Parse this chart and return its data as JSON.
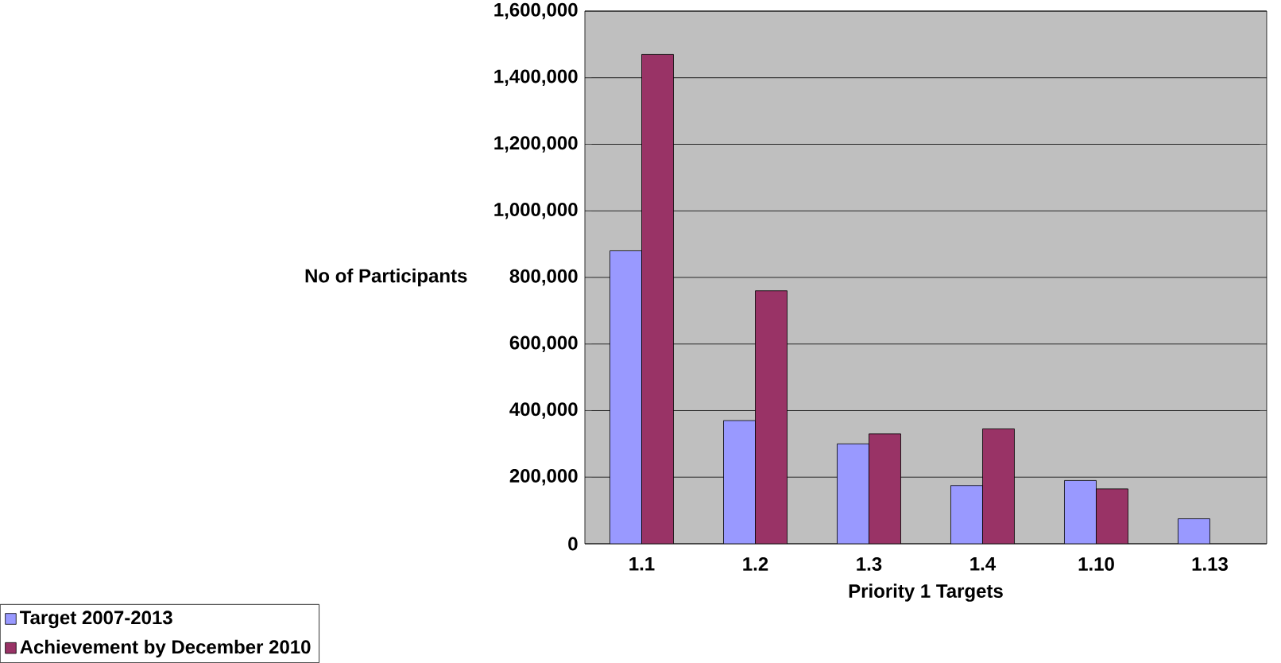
{
  "chart_data": {
    "type": "bar",
    "xlabel": "Priority 1 Targets",
    "ylabel": "No of Participants",
    "categories": [
      "1.1",
      "1.2",
      "1.3",
      "1.4",
      "1.10",
      "1.13"
    ],
    "series": [
      {
        "name": "Target 2007-2013",
        "color": "#9999ff",
        "values": [
          880000,
          370000,
          300000,
          175000,
          190000,
          75000
        ]
      },
      {
        "name": "Achievement by December 2010",
        "color": "#993366",
        "values": [
          1470000,
          760000,
          330000,
          345000,
          165000,
          null
        ]
      }
    ],
    "ylim": [
      0,
      1600000
    ],
    "yticks": [
      {
        "value": 0,
        "label": "0"
      },
      {
        "value": 200000,
        "label": "200,000"
      },
      {
        "value": 400000,
        "label": "400,000"
      },
      {
        "value": 600000,
        "label": "600,000"
      },
      {
        "value": 800000,
        "label": "800,000"
      },
      {
        "value": 1000000,
        "label": "1,000,000"
      },
      {
        "value": 1200000,
        "label": "1,200,000"
      },
      {
        "value": 1400000,
        "label": "1,400,000"
      },
      {
        "value": 1600000,
        "label": "1,600,000"
      }
    ],
    "grid": "y",
    "legend": "bottom left"
  }
}
